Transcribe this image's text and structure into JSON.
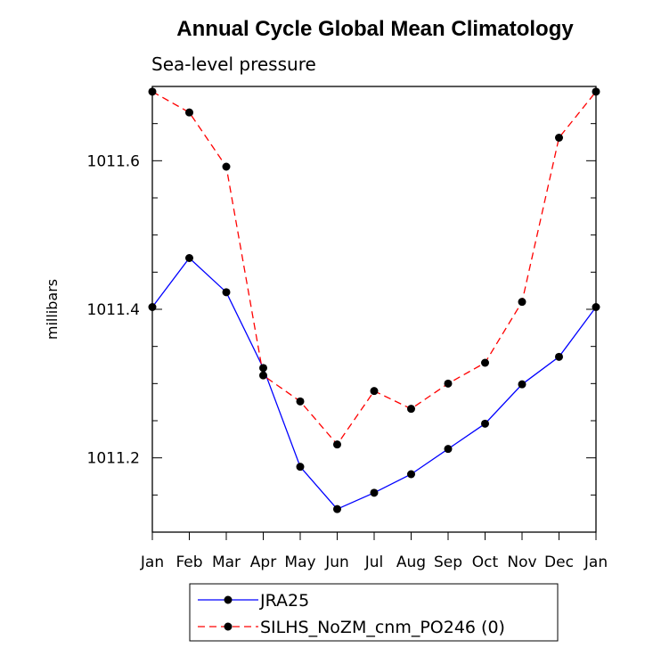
{
  "chart_data": {
    "type": "line",
    "title": "Annual Cycle Global Mean Climatology",
    "subtitle": "Sea-level pressure",
    "xlabel": "",
    "ylabel": "millibars",
    "categories": [
      "Jan",
      "Feb",
      "Mar",
      "Apr",
      "May",
      "Jun",
      "Jul",
      "Aug",
      "Sep",
      "Oct",
      "Nov",
      "Dec",
      "Jan"
    ],
    "ylim": [
      1011.1,
      1011.7
    ],
    "yticks": [
      {
        "value": 1011.2,
        "label": "1011.2"
      },
      {
        "value": 1011.4,
        "label": "1011.4"
      },
      {
        "value": 1011.6,
        "label": "1011.6"
      }
    ],
    "series": [
      {
        "name": "JRA25",
        "color": "#0000ff",
        "dash": "solid",
        "values": [
          1011.403,
          1011.469,
          1011.423,
          1011.321,
          1011.188,
          1011.131,
          1011.153,
          1011.178,
          1011.212,
          1011.246,
          1011.299,
          1011.336,
          1011.403
        ]
      },
      {
        "name": "SILHS_NoZM_cnm_PO246 (0)",
        "color": "#ff0000",
        "dash": "dashed",
        "values": [
          1011.693,
          1011.665,
          1011.592,
          1011.311,
          1011.276,
          1011.218,
          1011.29,
          1011.266,
          1011.3,
          1011.328,
          1011.41,
          1011.631,
          1011.693
        ]
      }
    ],
    "legend_position": "bottom"
  }
}
